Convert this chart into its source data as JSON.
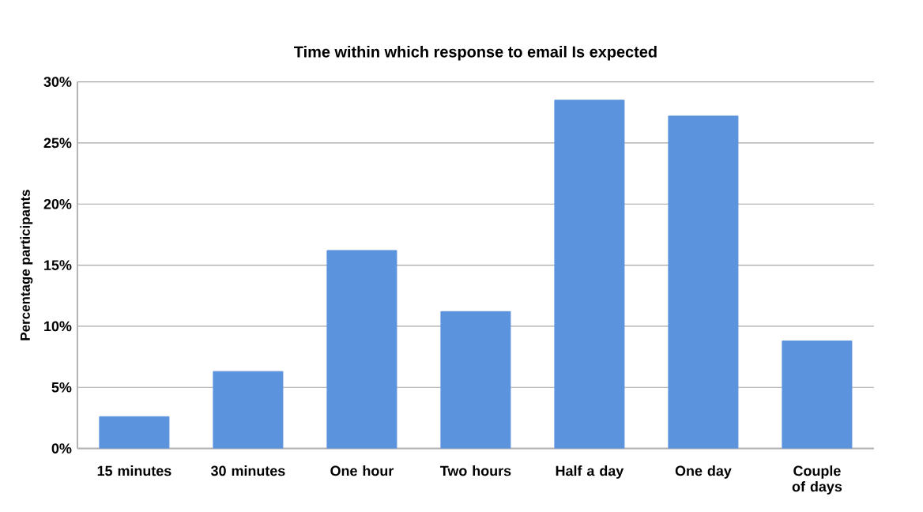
{
  "chart_data": {
    "type": "bar",
    "title": "Time within which response to email Is expected",
    "ylabel": "Percentage participants",
    "categories": [
      "15 minutes",
      "30 minutes",
      "One hour",
      "Two hours",
      "Half a day",
      "One day",
      "Couple of days"
    ],
    "values": [
      2.6,
      6.3,
      16.2,
      11.2,
      28.5,
      27.2,
      8.8
    ],
    "color": "#5b93dc",
    "ylim": [
      0,
      30
    ],
    "yticks": [
      {
        "value": 0,
        "label": "0%"
      },
      {
        "value": 5,
        "label": "5%"
      },
      {
        "value": 10,
        "label": "10%"
      },
      {
        "value": 15,
        "label": "15%"
      },
      {
        "value": 20,
        "label": "20%"
      },
      {
        "value": 25,
        "label": "25%"
      },
      {
        "value": 30,
        "label": "30%"
      }
    ],
    "grid": "y"
  }
}
